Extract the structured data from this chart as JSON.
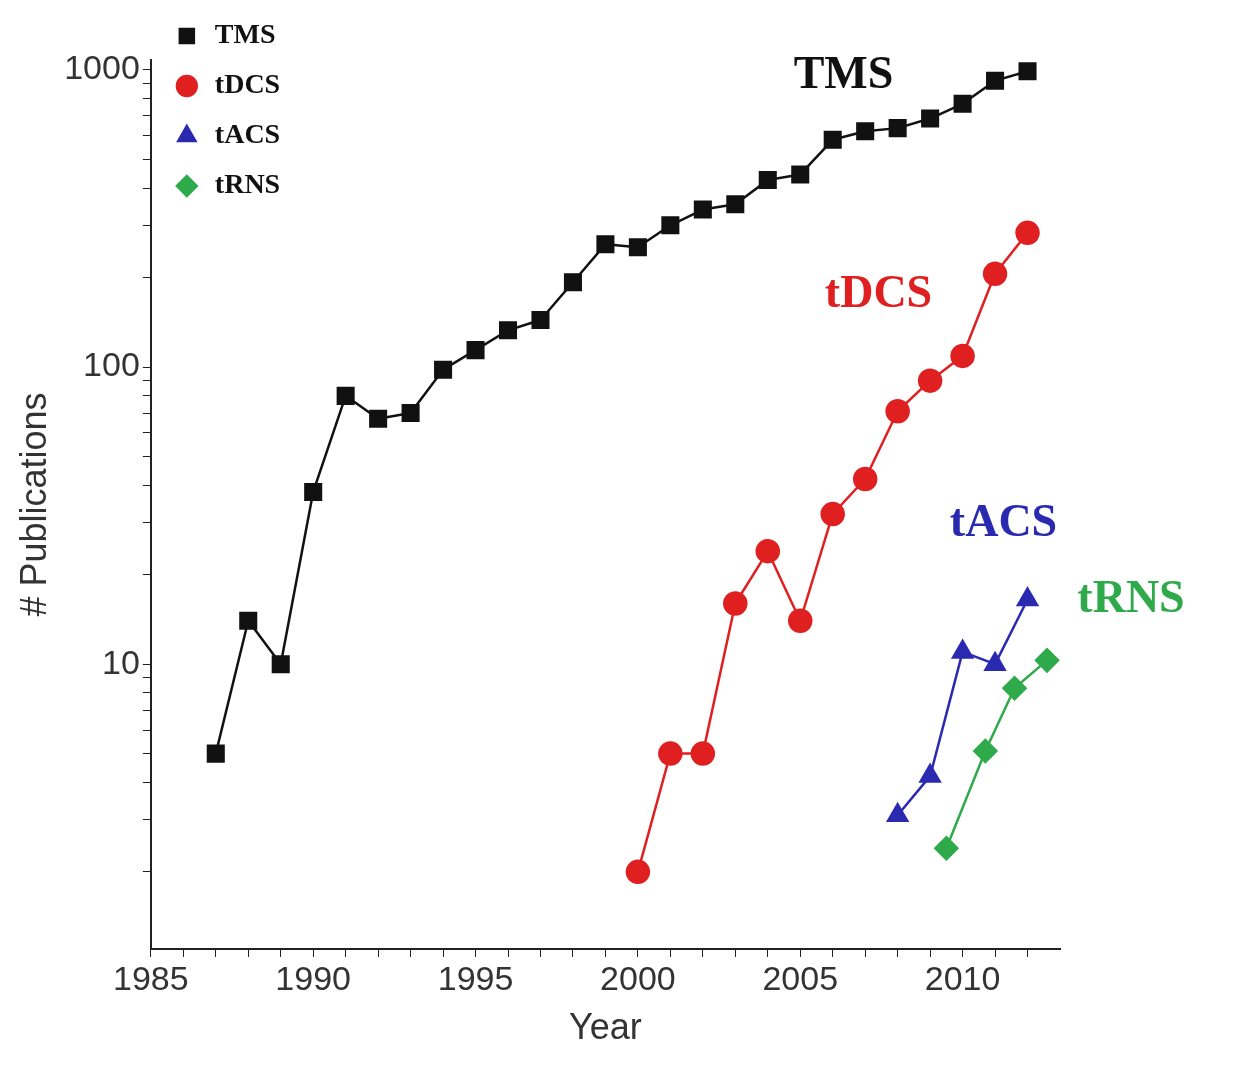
{
  "chart_data": {
    "type": "line",
    "xlabel": "Year",
    "ylabel": "# Publications",
    "log": "y",
    "grid": false,
    "legend": "top left",
    "xlim": [
      1985,
      2013
    ],
    "ylim": [
      1.1,
      1080
    ],
    "xticks": [
      1985,
      {
        "value": 1986,
        "label": null
      },
      {
        "value": 1987,
        "label": null
      },
      {
        "value": 1988,
        "label": null
      },
      {
        "value": 1989,
        "label": null
      },
      1990,
      {
        "value": 1991,
        "label": null
      },
      {
        "value": 1992,
        "label": null
      },
      {
        "value": 1993,
        "label": null
      },
      {
        "value": 1994,
        "label": null
      },
      1995,
      {
        "value": 1996,
        "label": null
      },
      {
        "value": 1997,
        "label": null
      },
      {
        "value": 1998,
        "label": null
      },
      {
        "value": 1999,
        "label": null
      },
      2000,
      {
        "value": 2001,
        "label": null
      },
      {
        "value": 2002,
        "label": null
      },
      {
        "value": 2003,
        "label": null
      },
      {
        "value": 2004,
        "label": null
      },
      2005,
      {
        "value": 2006,
        "label": null
      },
      {
        "value": 2007,
        "label": null
      },
      {
        "value": 2008,
        "label": null
      },
      {
        "value": 2009,
        "label": null
      },
      2010,
      {
        "value": 2011,
        "label": null
      },
      {
        "value": 2012,
        "label": null
      }
    ],
    "yticks": [
      {
        "value": 2,
        "label": null
      },
      {
        "value": 3,
        "label": null
      },
      {
        "value": 4,
        "label": null
      },
      {
        "value": 5,
        "label": null
      },
      {
        "value": 6,
        "label": null
      },
      {
        "value": 7,
        "label": null
      },
      {
        "value": 8,
        "label": null
      },
      {
        "value": 9,
        "label": null
      },
      10,
      {
        "value": 20,
        "label": null
      },
      {
        "value": 30,
        "label": null
      },
      {
        "value": 40,
        "label": null
      },
      {
        "value": 50,
        "label": null
      },
      {
        "value": 60,
        "label": null
      },
      {
        "value": 70,
        "label": null
      },
      {
        "value": 80,
        "label": null
      },
      {
        "value": 90,
        "label": null
      },
      100,
      {
        "value": 200,
        "label": null
      },
      {
        "value": 300,
        "label": null
      },
      {
        "value": 400,
        "label": null
      },
      {
        "value": 500,
        "label": null
      },
      {
        "value": 600,
        "label": null
      },
      {
        "value": 700,
        "label": null
      },
      {
        "value": 800,
        "label": null
      },
      {
        "value": 900,
        "label": null
      },
      1000
    ],
    "series": [
      {
        "name": "TMS",
        "color": "#111111",
        "marker": "square",
        "x": [
          1987,
          1988,
          1989,
          1990,
          1991,
          1992,
          1993,
          1994,
          1995,
          1996,
          1997,
          1998,
          1999,
          2000,
          2001,
          2002,
          2003,
          2004,
          2005,
          2006,
          2007,
          2008,
          2009,
          2010,
          2011,
          2012
        ],
        "values": [
          5,
          14,
          10,
          38,
          80,
          67,
          70,
          98,
          114,
          133,
          144,
          193,
          259,
          253,
          300,
          339,
          353,
          426,
          445,
          582,
          622,
          637,
          686,
          769,
          920,
          990
        ]
      },
      {
        "name": "tDCS",
        "color": "#e02020",
        "marker": "circle",
        "x": [
          2000,
          2001,
          2002,
          2003,
          2004,
          2005,
          2006,
          2007,
          2008,
          2009,
          2010,
          2011,
          2012
        ],
        "values": [
          2,
          5,
          5,
          16,
          24,
          14,
          32,
          42,
          71,
          90,
          109,
          206,
          283
        ]
      },
      {
        "name": "tACS",
        "color": "#2a2ab0",
        "marker": "triangle",
        "x": [
          2008,
          2009,
          2010,
          2011,
          2012
        ],
        "values": [
          3.1,
          4.2,
          11,
          10,
          16.5
        ]
      },
      {
        "name": "tRNS",
        "color": "#2eaa4a",
        "marker": "diamond",
        "x": [
          2009.5,
          2010.7,
          2011.6,
          2012.6
        ],
        "values": [
          2.4,
          5.1,
          8.3,
          10.3
        ]
      }
    ]
  }
}
